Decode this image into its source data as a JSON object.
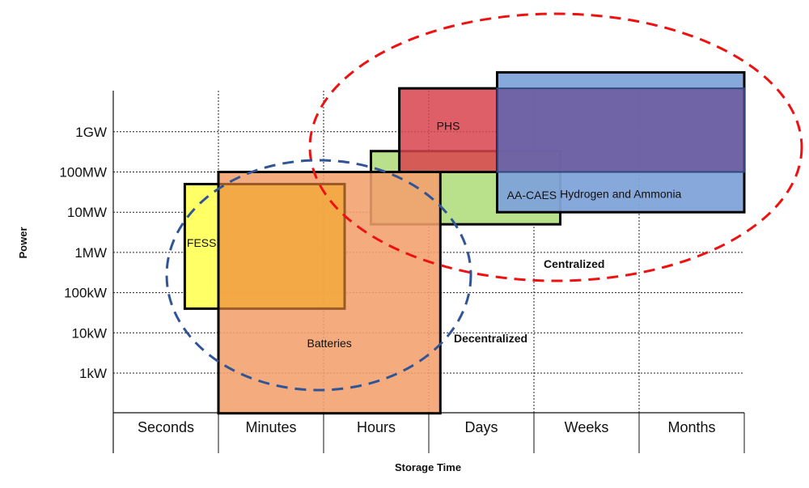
{
  "chart_data": {
    "type": "range-box",
    "xlabel": "Storage Time",
    "ylabel": "Power",
    "x_categories": [
      "Seconds",
      "Minutes",
      "Hours",
      "Days",
      "Weeks",
      "Months"
    ],
    "y_scale": "log",
    "y_ticks": [
      {
        "label": "1kW",
        "value": 1000
      },
      {
        "label": "10kW",
        "value": 10000
      },
      {
        "label": "100kW",
        "value": 100000
      },
      {
        "label": "1MW",
        "value": 1000000
      },
      {
        "label": "10MW",
        "value": 10000000
      },
      {
        "label": "100MW",
        "value": 100000000
      },
      {
        "label": "1GW",
        "value": 1000000000
      }
    ],
    "grid": true,
    "technologies": [
      {
        "name": "AA-CAES",
        "label": "AA-CAES",
        "time_range": [
          2.45,
          4.25
        ],
        "power_range_W": [
          5000000.0,
          330000000.0
        ],
        "color": "#b9e08a"
      },
      {
        "name": "PHS",
        "label": "PHS",
        "time_range": [
          2.72,
          3.65
        ],
        "power_range_W": [
          100000000.0,
          12000000000.0
        ],
        "color": "#d9434d"
      },
      {
        "name": "Hydrogen and Ammonia",
        "label": "Hydrogen and Ammonia",
        "time_range": [
          3.65,
          6.0
        ],
        "power_range_W": [
          10000000.0,
          30000000000.0
        ],
        "color": "#7fa3d9"
      },
      {
        "name": "band",
        "label": "",
        "time_range": [
          3.65,
          6.0
        ],
        "power_range_W": [
          100000000.0,
          12000000000.0
        ],
        "color": "#6a4e94"
      },
      {
        "name": "Batteries",
        "label": "Batteries",
        "time_range": [
          1.0,
          3.11
        ],
        "power_range_W": [
          100,
          100000000.0
        ],
        "color": "#f29f6c"
      },
      {
        "name": "inner-orange",
        "label": "",
        "time_range": [
          1.0,
          2.2
        ],
        "power_range_W": [
          40000.0,
          50000000.0
        ],
        "color": "#f2a83c"
      },
      {
        "name": "FESS",
        "label": "FESS",
        "time_range": [
          0.68,
          1.0
        ],
        "power_range_W": [
          40000.0,
          50000000.0
        ],
        "color": "#ffff66"
      }
    ],
    "regions": [
      {
        "label": "Centralized",
        "color": "#ee1111"
      },
      {
        "label": "Decentralized",
        "color": "#2f5597"
      }
    ]
  }
}
